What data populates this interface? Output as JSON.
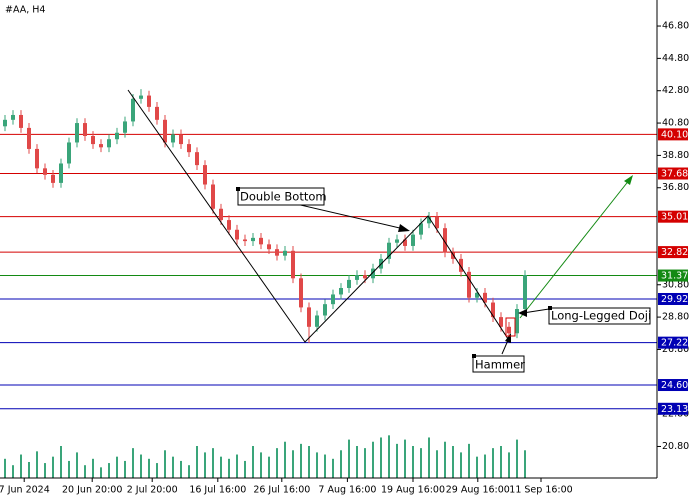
{
  "chart_data": {
    "type": "candlestick",
    "title": "#AA, H4",
    "x": [
      0,
      1,
      2,
      3,
      4,
      5,
      6,
      7,
      8,
      9,
      10,
      11,
      12,
      13,
      14,
      15,
      16,
      17,
      18,
      19,
      20,
      21,
      22,
      23,
      24,
      25,
      26,
      27,
      28,
      29,
      30,
      31,
      32,
      33,
      34,
      35,
      36,
      37,
      38,
      39,
      40,
      41,
      42,
      43,
      44,
      45,
      46,
      47,
      48,
      49,
      50,
      51,
      52,
      53,
      54,
      55,
      56,
      57,
      58,
      59,
      60,
      61,
      62,
      63,
      64,
      65
    ],
    "open": [
      40.6,
      41.0,
      41.3,
      40.5,
      39.2,
      38.0,
      37.6,
      37.1,
      38.3,
      39.6,
      40.8,
      40.0,
      39.5,
      39.3,
      39.8,
      40.2,
      40.9,
      42.3,
      42.5,
      41.8,
      41.0,
      39.6,
      40.1,
      39.5,
      39.0,
      38.2,
      37.0,
      35.5,
      34.8,
      34.2,
      33.6,
      33.5,
      33.7,
      33.3,
      33.0,
      32.6,
      32.9,
      31.2,
      29.4,
      28.2,
      28.9,
      29.6,
      30.2,
      30.6,
      31.1,
      31.4,
      31.2,
      31.8,
      32.4,
      33.4,
      33.6,
      33.2,
      33.9,
      34.6,
      35.0,
      34.3,
      32.8,
      32.4,
      31.6,
      30.0,
      30.3,
      29.7,
      28.8,
      28.2,
      27.8,
      29.3
    ],
    "high": [
      41.3,
      41.6,
      41.6,
      40.8,
      39.5,
      38.3,
      37.9,
      38.6,
      39.9,
      41.1,
      41.1,
      40.3,
      39.8,
      40.1,
      40.5,
      41.2,
      42.6,
      42.9,
      42.8,
      42.1,
      41.3,
      40.4,
      40.4,
      39.8,
      39.3,
      38.5,
      37.3,
      35.8,
      35.1,
      34.5,
      33.9,
      34.0,
      34.0,
      33.6,
      33.3,
      33.2,
      33.2,
      31.5,
      29.7,
      29.2,
      29.9,
      30.5,
      30.9,
      31.4,
      31.7,
      31.7,
      32.1,
      32.7,
      33.7,
      33.9,
      33.9,
      34.2,
      34.9,
      35.3,
      35.3,
      34.6,
      33.1,
      32.7,
      31.9,
      30.6,
      30.6,
      30.0,
      29.1,
      28.5,
      29.6,
      31.7
    ],
    "low": [
      40.3,
      40.7,
      40.2,
      38.9,
      37.7,
      37.3,
      36.8,
      36.8,
      38.0,
      39.3,
      39.7,
      39.2,
      39.0,
      39.0,
      39.5,
      39.9,
      40.6,
      42.0,
      41.5,
      40.7,
      39.3,
      39.3,
      39.2,
      38.7,
      37.9,
      36.7,
      35.2,
      34.5,
      33.9,
      33.3,
      33.2,
      33.2,
      33.0,
      32.7,
      32.3,
      32.3,
      30.9,
      29.1,
      27.2,
      27.9,
      28.6,
      29.3,
      29.9,
      30.3,
      30.8,
      30.9,
      30.9,
      31.5,
      32.1,
      33.1,
      32.9,
      32.9,
      33.6,
      34.3,
      34.0,
      32.5,
      32.1,
      31.3,
      29.7,
      29.7,
      29.4,
      28.5,
      27.9,
      27.3,
      27.5,
      29.0
    ],
    "close": [
      41.0,
      41.3,
      40.5,
      39.2,
      38.0,
      37.6,
      37.1,
      38.3,
      39.6,
      40.8,
      40.0,
      39.5,
      39.3,
      39.8,
      40.2,
      40.9,
      42.3,
      42.5,
      41.8,
      41.0,
      39.6,
      40.1,
      39.5,
      39.0,
      38.2,
      37.0,
      35.5,
      34.8,
      34.2,
      33.6,
      33.5,
      33.7,
      33.3,
      33.0,
      32.6,
      32.9,
      31.2,
      29.4,
      28.2,
      28.9,
      29.6,
      30.2,
      30.6,
      31.1,
      31.4,
      31.2,
      31.8,
      32.4,
      33.4,
      33.6,
      33.2,
      33.9,
      34.6,
      35.0,
      34.3,
      32.8,
      32.4,
      31.6,
      30.0,
      30.3,
      29.7,
      28.8,
      28.2,
      27.8,
      29.3,
      31.4
    ],
    "volume": [
      18,
      12,
      22,
      15,
      25,
      14,
      20,
      30,
      16,
      24,
      12,
      18,
      10,
      14,
      20,
      16,
      28,
      22,
      18,
      14,
      26,
      20,
      16,
      12,
      30,
      24,
      28,
      20,
      18,
      22,
      16,
      30,
      24,
      20,
      28,
      34,
      26,
      32,
      30,
      24,
      22,
      18,
      26,
      36,
      30,
      28,
      34,
      38,
      40,
      32,
      36,
      30,
      28,
      38,
      26,
      34,
      30,
      24,
      32,
      20,
      22,
      28,
      30,
      24,
      36,
      26
    ],
    "vlim": [
      0,
      45
    ],
    "up_color": "#3aa57a",
    "down_color": "#e04848",
    "xlim": [
      -0.625,
      81.5
    ],
    "ylim": [
      18.85,
      48.41
    ],
    "xticks": [
      {
        "value": 2.4,
        "label": "7 Jun 2024"
      },
      {
        "value": 10.9,
        "label": "20 Jun 20:00"
      },
      {
        "value": 18.4,
        "label": "2 Jul 20:00"
      },
      {
        "value": 26.6,
        "label": "16 Jul 16:00"
      },
      {
        "value": 34.6,
        "label": "26 Jul 16:00"
      },
      {
        "value": 42.8,
        "label": "7 Aug 16:00"
      },
      {
        "value": 51,
        "label": "19 Aug 16:00"
      },
      {
        "value": 59.1,
        "label": "29 Aug 16:00"
      },
      {
        "value": 67,
        "label": "11 Sep 16:00"
      }
    ],
    "yticks": [
      {
        "value": 46.8,
        "label": "46.80"
      },
      {
        "value": 44.8,
        "label": "44.80"
      },
      {
        "value": 42.8,
        "label": "42.80"
      },
      {
        "value": 40.8,
        "label": "40.80"
      },
      {
        "value": 38.8,
        "label": "38.80"
      },
      {
        "value": 36.8,
        "label": "36.80"
      },
      {
        "value": 30.8,
        "label": "30.80"
      },
      {
        "value": 28.8,
        "label": "28.80"
      },
      {
        "value": 26.8,
        "label": "26.80"
      },
      {
        "value": 22.8,
        "label": "22.80"
      },
      {
        "value": 20.8,
        "label": "20.80"
      }
    ],
    "price_lines": [
      {
        "value": 40.1,
        "label": "40.10",
        "color": "#d40000"
      },
      {
        "value": 37.68,
        "label": "37.68",
        "color": "#d40000"
      },
      {
        "value": 35.01,
        "label": "35.01",
        "color": "#d40000"
      },
      {
        "value": 32.82,
        "label": "32.82",
        "color": "#d40000"
      },
      {
        "value": 31.37,
        "label": "31.37",
        "color": "#138a13"
      },
      {
        "value": 29.92,
        "label": "29.92",
        "color": "#0000b4"
      },
      {
        "value": 27.22,
        "label": "27.22",
        "color": "#0000b4"
      },
      {
        "value": 24.6,
        "label": "24.60",
        "color": "#0000b4"
      },
      {
        "value": 23.13,
        "label": "23.13",
        "color": "#0000b4"
      }
    ],
    "annotations": [
      "Double Bottom",
      "Long-Legged Doji",
      "Hammer"
    ]
  }
}
